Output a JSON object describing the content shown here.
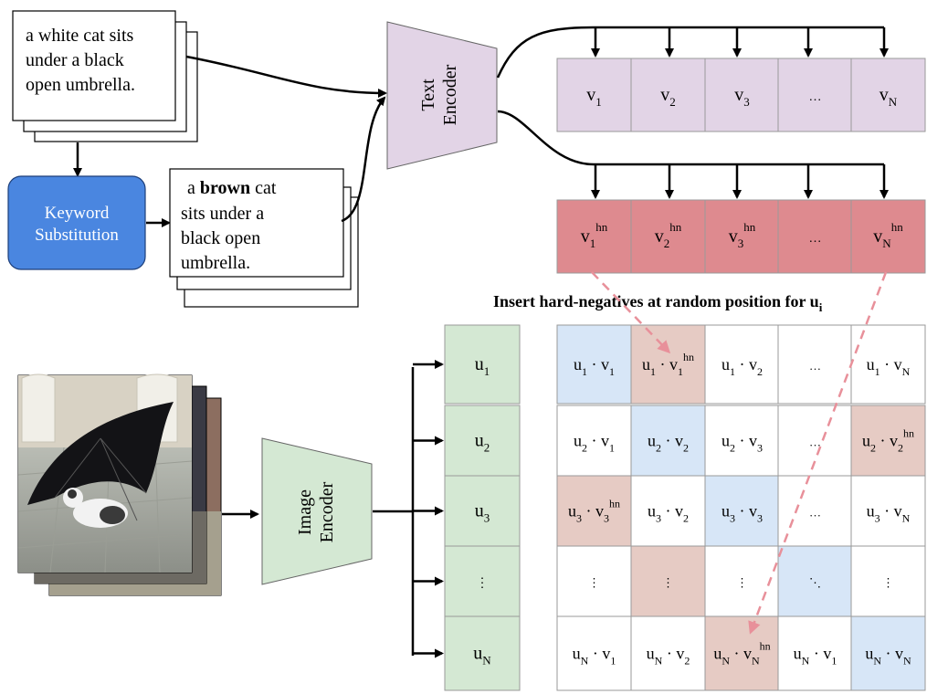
{
  "caption_box": {
    "lines": [
      "a white cat sits",
      "under a black",
      "open umbrella."
    ]
  },
  "keyword_box": {
    "lines": [
      "Keyword",
      "Substitution"
    ]
  },
  "hard_negative_caption": {
    "lines": [
      {
        "pre": "a ",
        "bold": "brown",
        "post": " cat"
      },
      {
        "pre": "sits under a",
        "bold": "",
        "post": ""
      },
      {
        "pre": "black open",
        "bold": "",
        "post": ""
      },
      {
        "pre": "umbrella.",
        "bold": "",
        "post": ""
      }
    ]
  },
  "text_encoder": {
    "lines": [
      "Text",
      "Encoder"
    ]
  },
  "image_encoder": {
    "lines": [
      "Image",
      "Encoder"
    ]
  },
  "text_embeddings": [
    {
      "base": "v",
      "sub": "1"
    },
    {
      "base": "v",
      "sub": "2"
    },
    {
      "base": "v",
      "sub": "3"
    },
    {
      "base": "…",
      "sub": ""
    },
    {
      "base": "v",
      "sub": "N"
    }
  ],
  "hn_embeddings": [
    {
      "base": "v",
      "sub": "1",
      "sup": "hn"
    },
    {
      "base": "v",
      "sub": "2",
      "sup": "hn"
    },
    {
      "base": "v",
      "sub": "3",
      "sup": "hn"
    },
    {
      "base": "…",
      "sub": "",
      "sup": ""
    },
    {
      "base": "v",
      "sub": "N",
      "sup": "hn"
    }
  ],
  "image_embeddings": [
    {
      "base": "u",
      "sub": "1"
    },
    {
      "base": "u",
      "sub": "2"
    },
    {
      "base": "u",
      "sub": "3"
    },
    {
      "base": "⋮",
      "sub": ""
    },
    {
      "base": "u",
      "sub": "N"
    }
  ],
  "insert_label": {
    "text": "Insert hard-negatives at random position for u",
    "sub": "i"
  },
  "colors": {
    "text_purple": "#e2d4e6",
    "hn_red": "#de8a8f",
    "image_green": "#d4e8d3",
    "keyword_blue": "#4a86e0",
    "pos_blue": "#d7e6f7",
    "hn_brown": "#e6cbc4",
    "arrow_pink": "#e8909a",
    "cell_border": "#9a9a9a"
  },
  "matrix": [
    [
      {
        "kind": "pos",
        "u": "1",
        "v": "1",
        "hn": false
      },
      {
        "kind": "hn",
        "u": "1",
        "v": "1",
        "hn": true
      },
      {
        "kind": "plain",
        "u": "1",
        "v": "2",
        "hn": false
      },
      {
        "kind": "dots",
        "text": "…"
      },
      {
        "kind": "plain",
        "u": "1",
        "v": "N",
        "hn": false
      }
    ],
    [
      {
        "kind": "plain",
        "u": "2",
        "v": "1",
        "hn": false
      },
      {
        "kind": "pos",
        "u": "2",
        "v": "2",
        "hn": false
      },
      {
        "kind": "plain",
        "u": "2",
        "v": "3",
        "hn": false
      },
      {
        "kind": "dots",
        "text": "…"
      },
      {
        "kind": "hn",
        "u": "2",
        "v": "2",
        "hn": true
      }
    ],
    [
      {
        "kind": "hn",
        "u": "3",
        "v": "3",
        "hn": true
      },
      {
        "kind": "plain",
        "u": "3",
        "v": "2",
        "hn": false
      },
      {
        "kind": "pos",
        "u": "3",
        "v": "3",
        "hn": false
      },
      {
        "kind": "dots",
        "text": "…"
      },
      {
        "kind": "plain",
        "u": "3",
        "v": "N",
        "hn": false
      }
    ],
    [
      {
        "kind": "vdots",
        "text": "⋮"
      },
      {
        "kind": "hnvdots",
        "text": "⋮"
      },
      {
        "kind": "vdots",
        "text": "⋮"
      },
      {
        "kind": "posddots",
        "text": "⋱"
      },
      {
        "kind": "vdots",
        "text": "⋮"
      }
    ],
    [
      {
        "kind": "plain",
        "u": "N",
        "v": "1",
        "hn": false
      },
      {
        "kind": "plain",
        "u": "N",
        "v": "2",
        "hn": false
      },
      {
        "kind": "hn",
        "u": "N",
        "v": "N",
        "hn": true
      },
      {
        "kind": "plain",
        "u": "N",
        "v": "1",
        "hn": false
      },
      {
        "kind": "pos",
        "u": "N",
        "v": "N",
        "hn": false
      }
    ]
  ]
}
